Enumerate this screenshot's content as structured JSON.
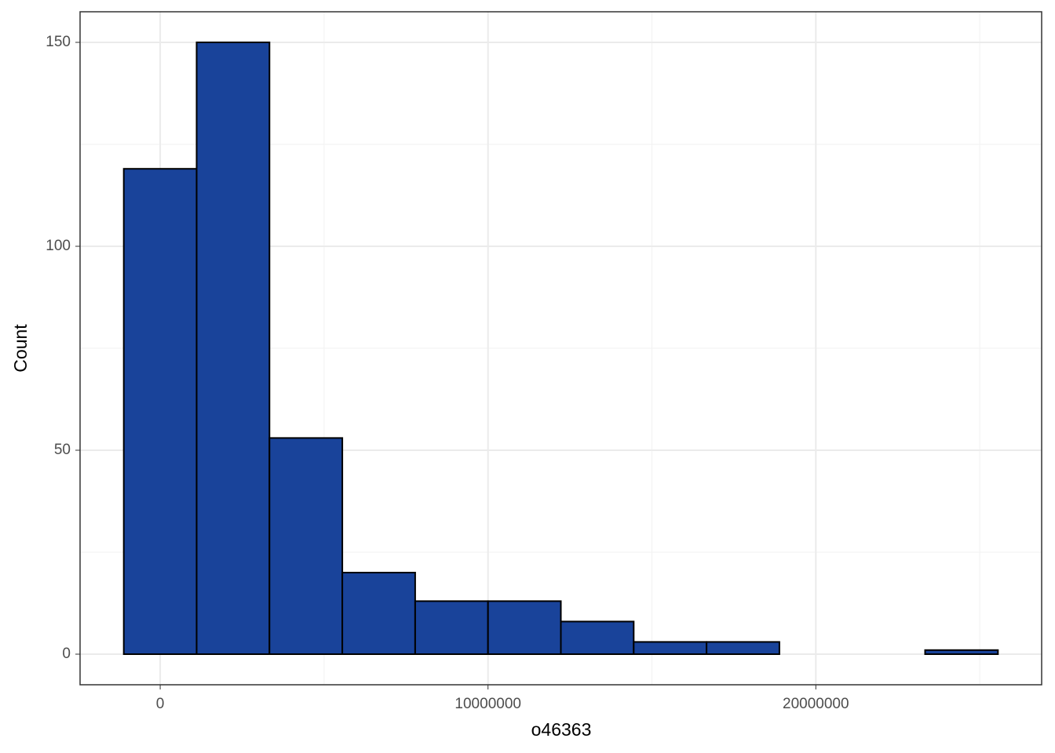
{
  "chart_data": {
    "type": "histogram",
    "x_label": "o46363",
    "y_label": "Count",
    "bins": [
      -1111111,
      1111111,
      3333333,
      5555556,
      7777778,
      10000000,
      12222222,
      14444444,
      16666667,
      18888889,
      21111111,
      23333333,
      25555556
    ],
    "values": [
      119,
      150,
      53,
      20,
      13,
      13,
      8,
      3,
      3,
      0,
      0,
      1
    ],
    "color": "#19439a",
    "edgecolor": "#000000",
    "xlim": [
      -2444444,
      26888889
    ],
    "ylim": [
      -7.5,
      157.5
    ],
    "xticks": [
      0,
      10000000,
      20000000
    ],
    "yticks": [
      0,
      50,
      100,
      150
    ],
    "xminor": [
      5000000,
      15000000,
      25000000
    ],
    "yminor": [
      25,
      75,
      125
    ],
    "grid": true
  }
}
